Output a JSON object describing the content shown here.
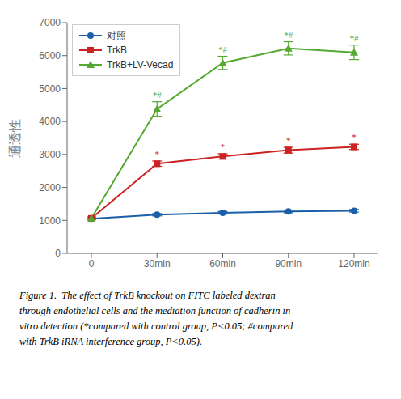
{
  "chart_data": {
    "type": "line",
    "ylabel": "通透性",
    "categories": [
      "0",
      "30min",
      "60min",
      "90min",
      "120min"
    ],
    "series": [
      {
        "name": "对照",
        "color": "#1a5fa8",
        "marker": "o",
        "values": [
          1050,
          1170,
          1230,
          1270,
          1290
        ],
        "errors": [
          30,
          35,
          40,
          40,
          40
        ]
      },
      {
        "name": "TrkB",
        "color": "#cc2222",
        "marker": "s",
        "values": [
          1060,
          2720,
          2940,
          3130,
          3230
        ],
        "errors": [
          40,
          80,
          80,
          90,
          80
        ]
      },
      {
        "name": "TrkB+LV-Vecad",
        "color": "#55a830",
        "marker": "^",
        "values": [
          1060,
          4380,
          5780,
          6220,
          6100
        ],
        "errors": [
          40,
          220,
          200,
          200,
          220
        ]
      }
    ],
    "annotations": [
      {
        "text": "*",
        "series": "TrkB",
        "category": "30min"
      },
      {
        "text": "*",
        "series": "TrkB",
        "category": "60min"
      },
      {
        "text": "*",
        "series": "TrkB",
        "category": "90min"
      },
      {
        "text": "*",
        "series": "TrkB",
        "category": "120min"
      },
      {
        "text": "*#",
        "series": "TrkB+LV-Vecad",
        "category": "30min"
      },
      {
        "text": "*#",
        "series": "TrkB+LV-Vecad",
        "category": "60min"
      },
      {
        "text": "*#",
        "series": "TrkB+LV-Vecad",
        "category": "90min"
      },
      {
        "text": "*#",
        "series": "TrkB+LV-Vecad",
        "category": "120min"
      }
    ],
    "ylim": [
      0,
      7000
    ],
    "yticks": [
      0,
      1000,
      2000,
      3000,
      4000,
      5000,
      6000,
      7000
    ],
    "grid": false,
    "legend": "upper left",
    "caption": [
      "Figure 1.  The effect of TrkB knockout on FITC labeled dextran",
      "through endothelial cells and the mediation function of cadherin in",
      "vitro detection (*compared with control group, P<0.05; #compared",
      "with TrkB iRNA interference group, P<0.05)."
    ]
  }
}
